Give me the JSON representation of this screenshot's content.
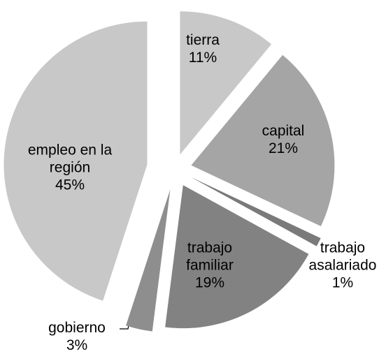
{
  "chart_data": {
    "type": "pie",
    "categories": [
      "tierra",
      "capital",
      "trabajo asalariado",
      "trabajo familiar",
      "gobierno",
      "empleo en la región"
    ],
    "values": [
      11,
      21,
      1,
      19,
      3,
      45
    ],
    "value_labels": [
      "11%",
      "21%",
      "1%",
      "19%",
      "3%",
      "45%"
    ],
    "colors": [
      "#c8c8c8",
      "#a5a5a5",
      "#7a7a7a",
      "#828282",
      "#8e8e8e",
      "#c8c8c8"
    ]
  }
}
